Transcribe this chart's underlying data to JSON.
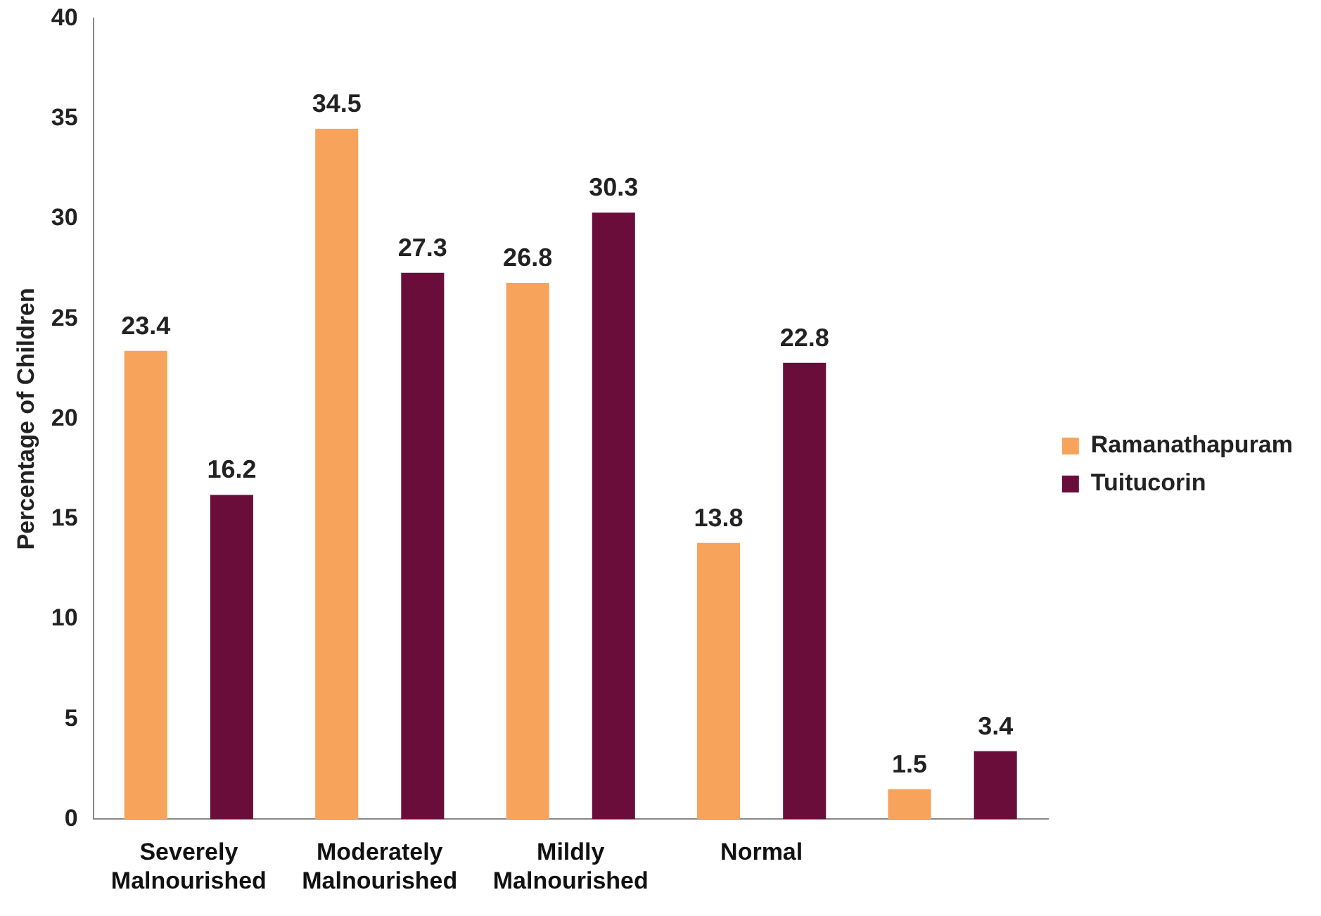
{
  "chart_data": {
    "type": "bar",
    "ylabel": "Percentage of Children",
    "categories": [
      "Severely Malnourished",
      "Moderately Malnourished",
      "Mildly Malnourished",
      "Normal",
      null
    ],
    "series": [
      {
        "name": "Ramanathapuram",
        "color": "#f7a35c",
        "values": [
          23.4,
          34.5,
          26.8,
          13.8,
          1.5
        ]
      },
      {
        "name": "Tuitucorin",
        "color": "#6a0d3b",
        "values": [
          16.2,
          27.3,
          30.3,
          22.8,
          3.4
        ]
      }
    ],
    "ylim": [
      0,
      40
    ],
    "yticks": [
      0,
      5,
      10,
      15,
      20,
      25,
      30,
      35,
      40
    ],
    "grid": false,
    "legend": "right",
    "data_labels": true
  }
}
